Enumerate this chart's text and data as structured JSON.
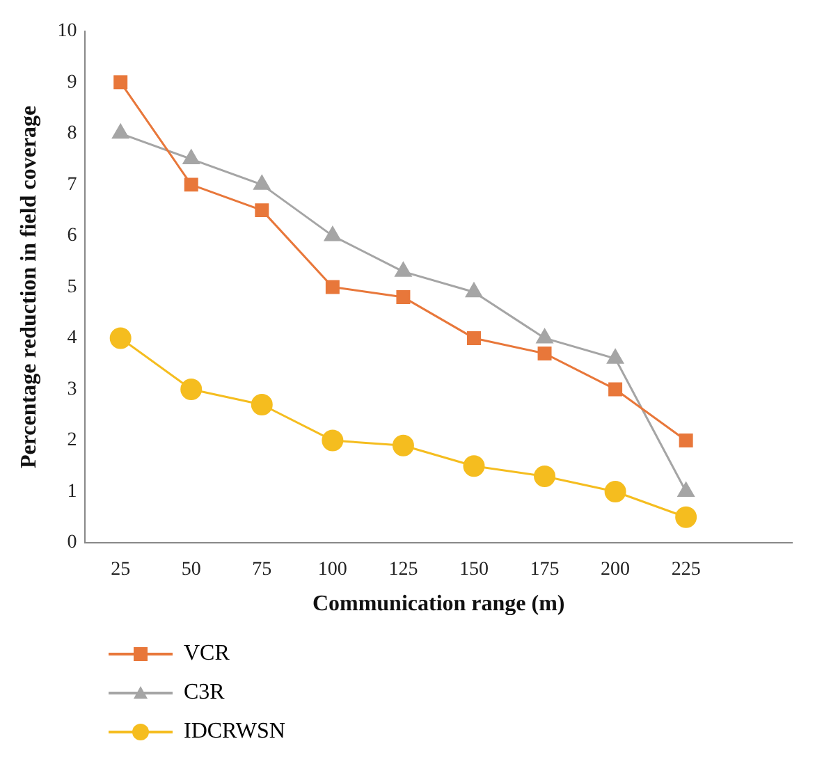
{
  "chart_data": {
    "type": "line",
    "xlabel": "Communication range (m)",
    "ylabel": "Percentage reduction in field coverage",
    "categories": [
      "25",
      "50",
      "75",
      "100",
      "125",
      "150",
      "175",
      "200",
      "225",
      null
    ],
    "ylim": [
      0,
      10
    ],
    "yticks": [
      0,
      1,
      2,
      3,
      4,
      5,
      6,
      7,
      8,
      9,
      10
    ],
    "grid": false,
    "legend": "bottom",
    "line_style": "solid",
    "series": [
      {
        "name": "VCR",
        "color": "#e8773a",
        "marker": "square",
        "values": [
          9,
          7,
          6.5,
          5,
          4.8,
          4,
          3.7,
          3,
          2,
          null
        ]
      },
      {
        "name": "C3R",
        "color": "#a5a5a5",
        "marker": "triangle",
        "values": [
          8,
          7.5,
          7,
          6,
          5.3,
          4.9,
          4,
          3.6,
          1,
          null
        ]
      },
      {
        "name": "IDCRWSN",
        "color": "#f5bd1f",
        "marker": "circle",
        "values": [
          4,
          3,
          2.7,
          2,
          1.9,
          1.5,
          1.3,
          1,
          0.5,
          null
        ]
      }
    ]
  }
}
